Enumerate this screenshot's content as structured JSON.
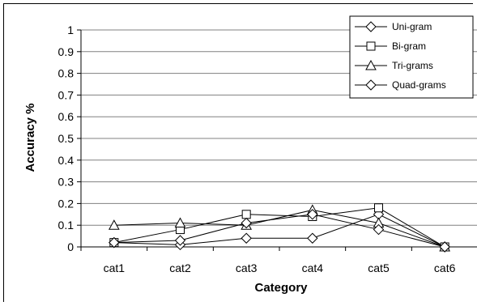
{
  "chart_data": {
    "type": "line",
    "title": "",
    "xlabel": "Category",
    "ylabel": "Accuracy %",
    "categories": [
      "cat1",
      "cat2",
      "cat3",
      "cat4",
      "cat5",
      "cat6"
    ],
    "ylim": [
      0,
      1
    ],
    "yticks": [
      "0",
      "0.1",
      "0.2",
      "0.3",
      "0.4",
      "0.5",
      "0.6",
      "0.7",
      "0.8",
      "0.9",
      "1"
    ],
    "grid": true,
    "legend_position": "top-right",
    "series": [
      {
        "name": "Uni-gram",
        "marker": "diamond",
        "values": [
          0.02,
          0.01,
          0.04,
          0.04,
          0.15,
          0.0
        ]
      },
      {
        "name": "Bi-gram",
        "marker": "square",
        "values": [
          0.02,
          0.08,
          0.15,
          0.14,
          0.18,
          0.0
        ]
      },
      {
        "name": "Tri-grams",
        "marker": "triangle",
        "values": [
          0.1,
          0.11,
          0.1,
          0.17,
          0.11,
          0.0
        ]
      },
      {
        "name": "Quad-grams",
        "marker": "diamond",
        "values": [
          0.02,
          0.03,
          0.11,
          0.15,
          0.08,
          0.0
        ]
      }
    ]
  }
}
